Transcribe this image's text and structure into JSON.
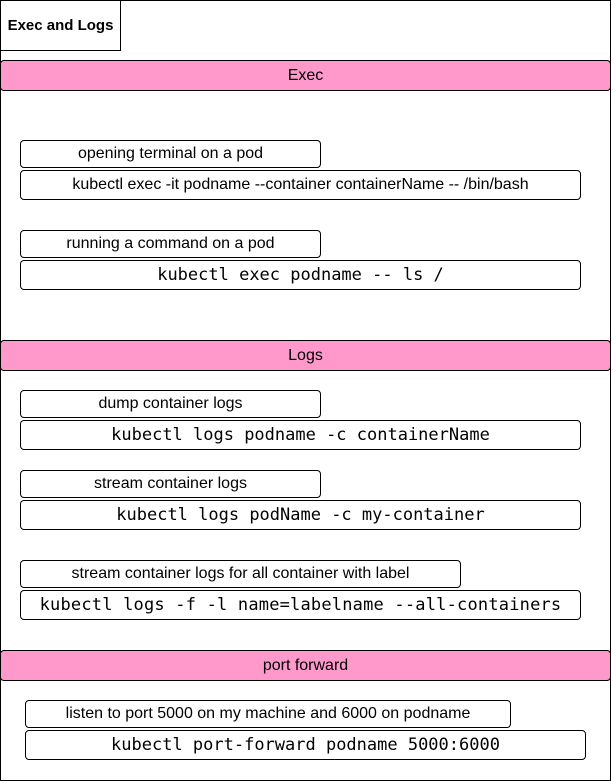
{
  "title": "Exec and Logs",
  "colors": {
    "section_fill": "#ff99cc",
    "border": "#000000",
    "background": "#ffffff"
  },
  "sections": [
    {
      "heading": "Exec",
      "items": [
        {
          "label": "opening terminal on a pod",
          "command": "kubectl exec -it  podname --container  containerName -- /bin/bash"
        },
        {
          "label": "running a command on a pod",
          "command": "kubectl exec podname -- ls /"
        }
      ]
    },
    {
      "heading": "Logs",
      "items": [
        {
          "label": "dump container logs",
          "command": "kubectl logs podname -c containerName"
        },
        {
          "label": "stream container logs",
          "command": "kubectl logs podName -c my-container"
        },
        {
          "label": "stream container logs for all container with label",
          "command": "kubectl logs -f -l name=labelname --all-containers"
        }
      ]
    },
    {
      "heading": "port forward",
      "items": [
        {
          "label": "listen to port 5000 on my machine and 6000 on podname",
          "command": "kubectl port-forward podname 5000:6000"
        }
      ]
    }
  ]
}
